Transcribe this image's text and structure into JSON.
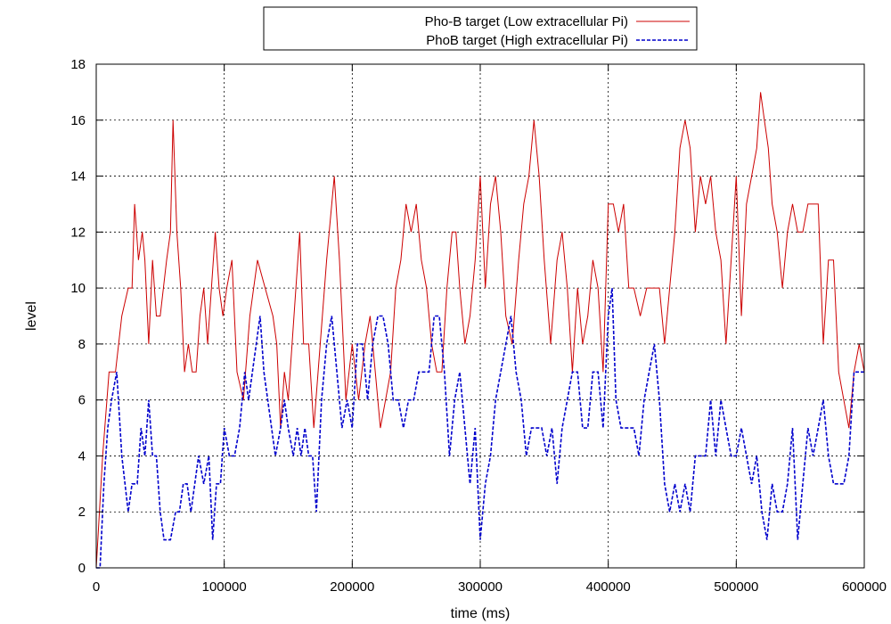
{
  "chart_data": {
    "type": "line",
    "xlabel": "time (ms)",
    "ylabel": "level",
    "xlim": [
      0,
      600000
    ],
    "ylim": [
      0,
      18
    ],
    "x_ticks": [
      0,
      100000,
      200000,
      300000,
      400000,
      500000,
      600000
    ],
    "x_tick_labels": [
      "0",
      "100000",
      "200000",
      "300000",
      "400000",
      "500000",
      "600000"
    ],
    "y_ticks": [
      0,
      2,
      4,
      6,
      8,
      10,
      12,
      14,
      16,
      18
    ],
    "y_tick_labels": [
      "0",
      "2",
      "4",
      "6",
      "8",
      "10",
      "12",
      "14",
      "16",
      "18"
    ],
    "grid": true,
    "legend_position": "top-center",
    "series": [
      {
        "name": "Pho-B target (Low extracellular Pi)",
        "color": "#cc0000",
        "line_style": "solid",
        "points": [
          [
            0,
            0
          ],
          [
            5000,
            4
          ],
          [
            10000,
            7
          ],
          [
            15000,
            7
          ],
          [
            20000,
            9
          ],
          [
            25000,
            10
          ],
          [
            28000,
            10
          ],
          [
            30000,
            13
          ],
          [
            33000,
            11
          ],
          [
            36000,
            12
          ],
          [
            38000,
            11
          ],
          [
            41000,
            8
          ],
          [
            44000,
            11
          ],
          [
            47000,
            9
          ],
          [
            50000,
            9
          ],
          [
            55000,
            11
          ],
          [
            58000,
            12
          ],
          [
            60000,
            16
          ],
          [
            63000,
            12
          ],
          [
            66000,
            10
          ],
          [
            69000,
            7
          ],
          [
            72000,
            8
          ],
          [
            75000,
            7
          ],
          [
            78000,
            7
          ],
          [
            81000,
            9
          ],
          [
            84000,
            10
          ],
          [
            87000,
            8
          ],
          [
            90000,
            10
          ],
          [
            93000,
            12
          ],
          [
            96000,
            10
          ],
          [
            99000,
            9
          ],
          [
            102000,
            10
          ],
          [
            106000,
            11
          ],
          [
            110000,
            7
          ],
          [
            115000,
            6
          ],
          [
            120000,
            9
          ],
          [
            126000,
            11
          ],
          [
            132000,
            10
          ],
          [
            138000,
            9
          ],
          [
            141000,
            8
          ],
          [
            144000,
            5
          ],
          [
            147000,
            7
          ],
          [
            150000,
            6
          ],
          [
            153000,
            8
          ],
          [
            156000,
            10
          ],
          [
            159000,
            12
          ],
          [
            162000,
            8
          ],
          [
            166000,
            8
          ],
          [
            170000,
            5
          ],
          [
            175000,
            8
          ],
          [
            180000,
            11
          ],
          [
            186000,
            14
          ],
          [
            190000,
            11
          ],
          [
            195000,
            6
          ],
          [
            200000,
            8
          ],
          [
            205000,
            6
          ],
          [
            210000,
            8
          ],
          [
            214000,
            9
          ],
          [
            218000,
            7
          ],
          [
            222000,
            5
          ],
          [
            226000,
            6
          ],
          [
            230000,
            7
          ],
          [
            234000,
            10
          ],
          [
            238000,
            11
          ],
          [
            242000,
            13
          ],
          [
            246000,
            12
          ],
          [
            250000,
            13
          ],
          [
            254000,
            11
          ],
          [
            258000,
            10
          ],
          [
            262000,
            8
          ],
          [
            266000,
            7
          ],
          [
            270000,
            7
          ],
          [
            274000,
            10
          ],
          [
            278000,
            12
          ],
          [
            281000,
            12
          ],
          [
            284000,
            10
          ],
          [
            288000,
            8
          ],
          [
            292000,
            9
          ],
          [
            296000,
            11
          ],
          [
            300000,
            14
          ],
          [
            304000,
            10
          ],
          [
            308000,
            13
          ],
          [
            312000,
            14
          ],
          [
            316000,
            12
          ],
          [
            320000,
            9
          ],
          [
            325000,
            8
          ],
          [
            330000,
            11
          ],
          [
            334000,
            13
          ],
          [
            338000,
            14
          ],
          [
            342000,
            16
          ],
          [
            346000,
            14
          ],
          [
            350000,
            11
          ],
          [
            355000,
            8
          ],
          [
            360000,
            11
          ],
          [
            364000,
            12
          ],
          [
            368000,
            10
          ],
          [
            372000,
            7
          ],
          [
            376000,
            10
          ],
          [
            380000,
            8
          ],
          [
            384000,
            9
          ],
          [
            388000,
            11
          ],
          [
            392000,
            10
          ],
          [
            396000,
            7
          ],
          [
            400000,
            13
          ],
          [
            404000,
            13
          ],
          [
            408000,
            12
          ],
          [
            412000,
            13
          ],
          [
            416000,
            10
          ],
          [
            420000,
            10
          ],
          [
            425000,
            9
          ],
          [
            430000,
            10
          ],
          [
            435000,
            10
          ],
          [
            440000,
            10
          ],
          [
            444000,
            8
          ],
          [
            448000,
            10
          ],
          [
            452000,
            12
          ],
          [
            456000,
            15
          ],
          [
            460000,
            16
          ],
          [
            464000,
            15
          ],
          [
            468000,
            12
          ],
          [
            472000,
            14
          ],
          [
            476000,
            13
          ],
          [
            480000,
            14
          ],
          [
            484000,
            12
          ],
          [
            488000,
            11
          ],
          [
            492000,
            8
          ],
          [
            496000,
            11
          ],
          [
            500000,
            14
          ],
          [
            504000,
            9
          ],
          [
            508000,
            13
          ],
          [
            512000,
            14
          ],
          [
            516000,
            15
          ],
          [
            519000,
            17
          ],
          [
            522000,
            16
          ],
          [
            525000,
            15
          ],
          [
            528000,
            13
          ],
          [
            532000,
            12
          ],
          [
            536000,
            10
          ],
          [
            540000,
            12
          ],
          [
            544000,
            13
          ],
          [
            548000,
            12
          ],
          [
            552000,
            12
          ],
          [
            556000,
            13
          ],
          [
            560000,
            13
          ],
          [
            564000,
            13
          ],
          [
            568000,
            8
          ],
          [
            572000,
            11
          ],
          [
            576000,
            11
          ],
          [
            580000,
            7
          ],
          [
            584000,
            6
          ],
          [
            588000,
            5
          ],
          [
            592000,
            7
          ],
          [
            596000,
            8
          ],
          [
            600000,
            7
          ]
        ]
      },
      {
        "name": "PhoB target (High extracellular Pi)",
        "color": "#0000cc",
        "line_style": "dashed",
        "points": [
          [
            0,
            0
          ],
          [
            3000,
            0
          ],
          [
            6000,
            3
          ],
          [
            9000,
            5
          ],
          [
            12000,
            6
          ],
          [
            16000,
            7
          ],
          [
            20000,
            4
          ],
          [
            25000,
            2
          ],
          [
            28000,
            3
          ],
          [
            32000,
            3
          ],
          [
            35000,
            5
          ],
          [
            38000,
            4
          ],
          [
            41000,
            6
          ],
          [
            44000,
            4
          ],
          [
            47000,
            4
          ],
          [
            50000,
            2
          ],
          [
            53000,
            1
          ],
          [
            58000,
            1
          ],
          [
            62000,
            2
          ],
          [
            65000,
            2
          ],
          [
            68000,
            3
          ],
          [
            71000,
            3
          ],
          [
            74000,
            2
          ],
          [
            77000,
            3
          ],
          [
            80000,
            4
          ],
          [
            84000,
            3
          ],
          [
            88000,
            4
          ],
          [
            91000,
            1
          ],
          [
            94000,
            3
          ],
          [
            97000,
            3
          ],
          [
            100000,
            5
          ],
          [
            104000,
            4
          ],
          [
            108000,
            4
          ],
          [
            112000,
            5
          ],
          [
            116000,
            7
          ],
          [
            119000,
            6
          ],
          [
            122000,
            7
          ],
          [
            125000,
            8
          ],
          [
            128000,
            9
          ],
          [
            131000,
            7
          ],
          [
            134000,
            6
          ],
          [
            137000,
            5
          ],
          [
            140000,
            4
          ],
          [
            144000,
            5
          ],
          [
            147000,
            6
          ],
          [
            150000,
            5
          ],
          [
            154000,
            4
          ],
          [
            157000,
            5
          ],
          [
            160000,
            4
          ],
          [
            163000,
            5
          ],
          [
            166000,
            4
          ],
          [
            169000,
            4
          ],
          [
            172000,
            2
          ],
          [
            176000,
            6
          ],
          [
            180000,
            8
          ],
          [
            184000,
            9
          ],
          [
            188000,
            7
          ],
          [
            192000,
            5
          ],
          [
            196000,
            6
          ],
          [
            200000,
            5
          ],
          [
            204000,
            8
          ],
          [
            208000,
            8
          ],
          [
            212000,
            6
          ],
          [
            216000,
            8
          ],
          [
            220000,
            9
          ],
          [
            224000,
            9
          ],
          [
            228000,
            8
          ],
          [
            232000,
            6
          ],
          [
            236000,
            6
          ],
          [
            240000,
            5
          ],
          [
            244000,
            6
          ],
          [
            248000,
            6
          ],
          [
            252000,
            7
          ],
          [
            256000,
            7
          ],
          [
            260000,
            7
          ],
          [
            264000,
            9
          ],
          [
            268000,
            9
          ],
          [
            272000,
            7
          ],
          [
            276000,
            4
          ],
          [
            280000,
            6
          ],
          [
            284000,
            7
          ],
          [
            288000,
            5
          ],
          [
            292000,
            3
          ],
          [
            296000,
            5
          ],
          [
            300000,
            1
          ],
          [
            304000,
            3
          ],
          [
            308000,
            4
          ],
          [
            312000,
            6
          ],
          [
            316000,
            7
          ],
          [
            320000,
            8
          ],
          [
            324000,
            9
          ],
          [
            328000,
            7
          ],
          [
            332000,
            6
          ],
          [
            336000,
            4
          ],
          [
            340000,
            5
          ],
          [
            344000,
            5
          ],
          [
            348000,
            5
          ],
          [
            352000,
            4
          ],
          [
            356000,
            5
          ],
          [
            360000,
            3
          ],
          [
            364000,
            5
          ],
          [
            368000,
            6
          ],
          [
            372000,
            7
          ],
          [
            376000,
            7
          ],
          [
            380000,
            5
          ],
          [
            384000,
            5
          ],
          [
            388000,
            7
          ],
          [
            392000,
            7
          ],
          [
            396000,
            5
          ],
          [
            400000,
            9
          ],
          [
            403000,
            10
          ],
          [
            406000,
            6
          ],
          [
            410000,
            5
          ],
          [
            415000,
            5
          ],
          [
            420000,
            5
          ],
          [
            424000,
            4
          ],
          [
            428000,
            6
          ],
          [
            432000,
            7
          ],
          [
            436000,
            8
          ],
          [
            440000,
            6
          ],
          [
            444000,
            3
          ],
          [
            448000,
            2
          ],
          [
            452000,
            3
          ],
          [
            456000,
            2
          ],
          [
            460000,
            3
          ],
          [
            464000,
            2
          ],
          [
            468000,
            4
          ],
          [
            472000,
            4
          ],
          [
            476000,
            4
          ],
          [
            480000,
            6
          ],
          [
            484000,
            4
          ],
          [
            488000,
            6
          ],
          [
            492000,
            5
          ],
          [
            496000,
            4
          ],
          [
            500000,
            4
          ],
          [
            504000,
            5
          ],
          [
            508000,
            4
          ],
          [
            512000,
            3
          ],
          [
            516000,
            4
          ],
          [
            520000,
            2
          ],
          [
            524000,
            1
          ],
          [
            528000,
            3
          ],
          [
            532000,
            2
          ],
          [
            536000,
            2
          ],
          [
            540000,
            3
          ],
          [
            544000,
            5
          ],
          [
            548000,
            1
          ],
          [
            552000,
            3
          ],
          [
            556000,
            5
          ],
          [
            560000,
            4
          ],
          [
            564000,
            5
          ],
          [
            568000,
            6
          ],
          [
            572000,
            4
          ],
          [
            576000,
            3
          ],
          [
            580000,
            3
          ],
          [
            584000,
            3
          ],
          [
            588000,
            4
          ],
          [
            592000,
            7
          ],
          [
            596000,
            7
          ],
          [
            600000,
            7
          ]
        ]
      }
    ]
  }
}
